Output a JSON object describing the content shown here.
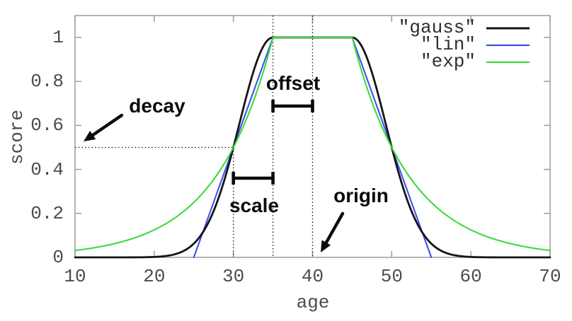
{
  "chart_data": {
    "type": "line",
    "title": "",
    "xlabel": "age",
    "ylabel": "score",
    "xlim": [
      10,
      70
    ],
    "ylim": [
      0,
      1.1
    ],
    "xtick_values": [
      10,
      20,
      30,
      40,
      50,
      60,
      70
    ],
    "xtick_labels": [
      "10",
      "20",
      "30",
      "40",
      "50",
      "60",
      "70"
    ],
    "ytick_values": [
      0,
      0.2,
      0.4,
      0.6,
      0.8,
      1
    ],
    "ytick_labels": [
      "0",
      "0.2",
      "0.4",
      "0.6",
      "0.8",
      "1"
    ],
    "grid": false,
    "legend_position": "top-right",
    "series": [
      {
        "name": "\"gauss\"",
        "function": "gauss",
        "color": "#151515",
        "line_width": 2.8
      },
      {
        "name": "\"lin\"",
        "function": "lin",
        "color": "#3f51ec",
        "line_width": 2.1
      },
      {
        "name": "\"exp\"",
        "function": "exp",
        "color": "#3bdc3b",
        "line_width": 2.1
      }
    ],
    "draw_order": [
      "lin",
      "gauss",
      "exp"
    ],
    "decay_function_params": {
      "origin": 40,
      "offset": 5,
      "scale": 5,
      "decay": 0.5
    },
    "sample_points": {
      "x": [
        10,
        20,
        25,
        30,
        35,
        40,
        45,
        50,
        55,
        60,
        70
      ],
      "gauss": [
        0,
        0.002,
        0.0625,
        0.5,
        1,
        1,
        1,
        0.5,
        0.0625,
        0.002,
        0
      ],
      "lin": [
        0,
        0,
        0,
        0.5,
        1,
        1,
        1,
        0.5,
        0,
        0,
        0
      ],
      "exp": [
        0.031,
        0.125,
        0.25,
        0.5,
        1,
        1,
        1,
        0.5,
        0.25,
        0.125,
        0.031
      ]
    },
    "guides": {
      "vertical_dotted_x": [
        30,
        35,
        40
      ],
      "horizontal_dotted_y": 0.5
    },
    "annotations": {
      "decay": {
        "text": "decay",
        "indicates_value": 0.5
      },
      "offset": {
        "text": "offset",
        "from_x": 35,
        "to_x": 40
      },
      "scale": {
        "text": "scale",
        "from_x": 30,
        "to_x": 35
      },
      "origin": {
        "text": "origin",
        "x": 40
      }
    }
  }
}
